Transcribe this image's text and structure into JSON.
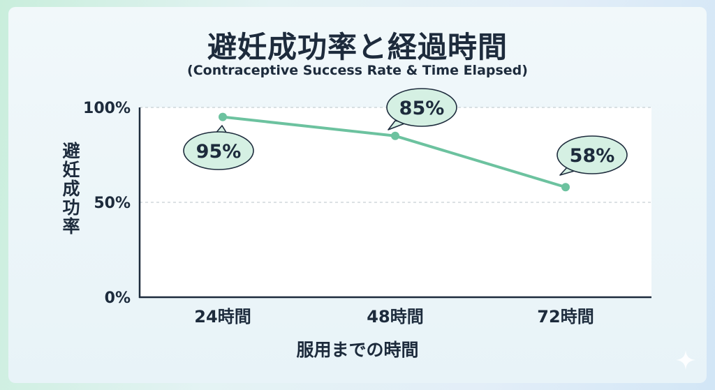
{
  "chart_data": {
    "type": "line",
    "title": "避妊成功率と経過時間",
    "subtitle": "(Contraceptive Success Rate & Time Elapsed)",
    "xlabel": "服用までの時間",
    "ylabel": "避妊成功率",
    "categories": [
      "24時間",
      "48時間",
      "72時間"
    ],
    "values": [
      95,
      85,
      58
    ],
    "data_labels": [
      "95%",
      "85%",
      "58%"
    ],
    "ylim": [
      0,
      100
    ],
    "yticks": [
      0,
      50,
      100
    ],
    "ytick_labels": [
      "0%",
      "50%",
      "100%"
    ],
    "grid": true,
    "line_color": "#6cc29f",
    "bubble_fill": "#d5f0e3",
    "text_color": "#1d2b3c"
  }
}
